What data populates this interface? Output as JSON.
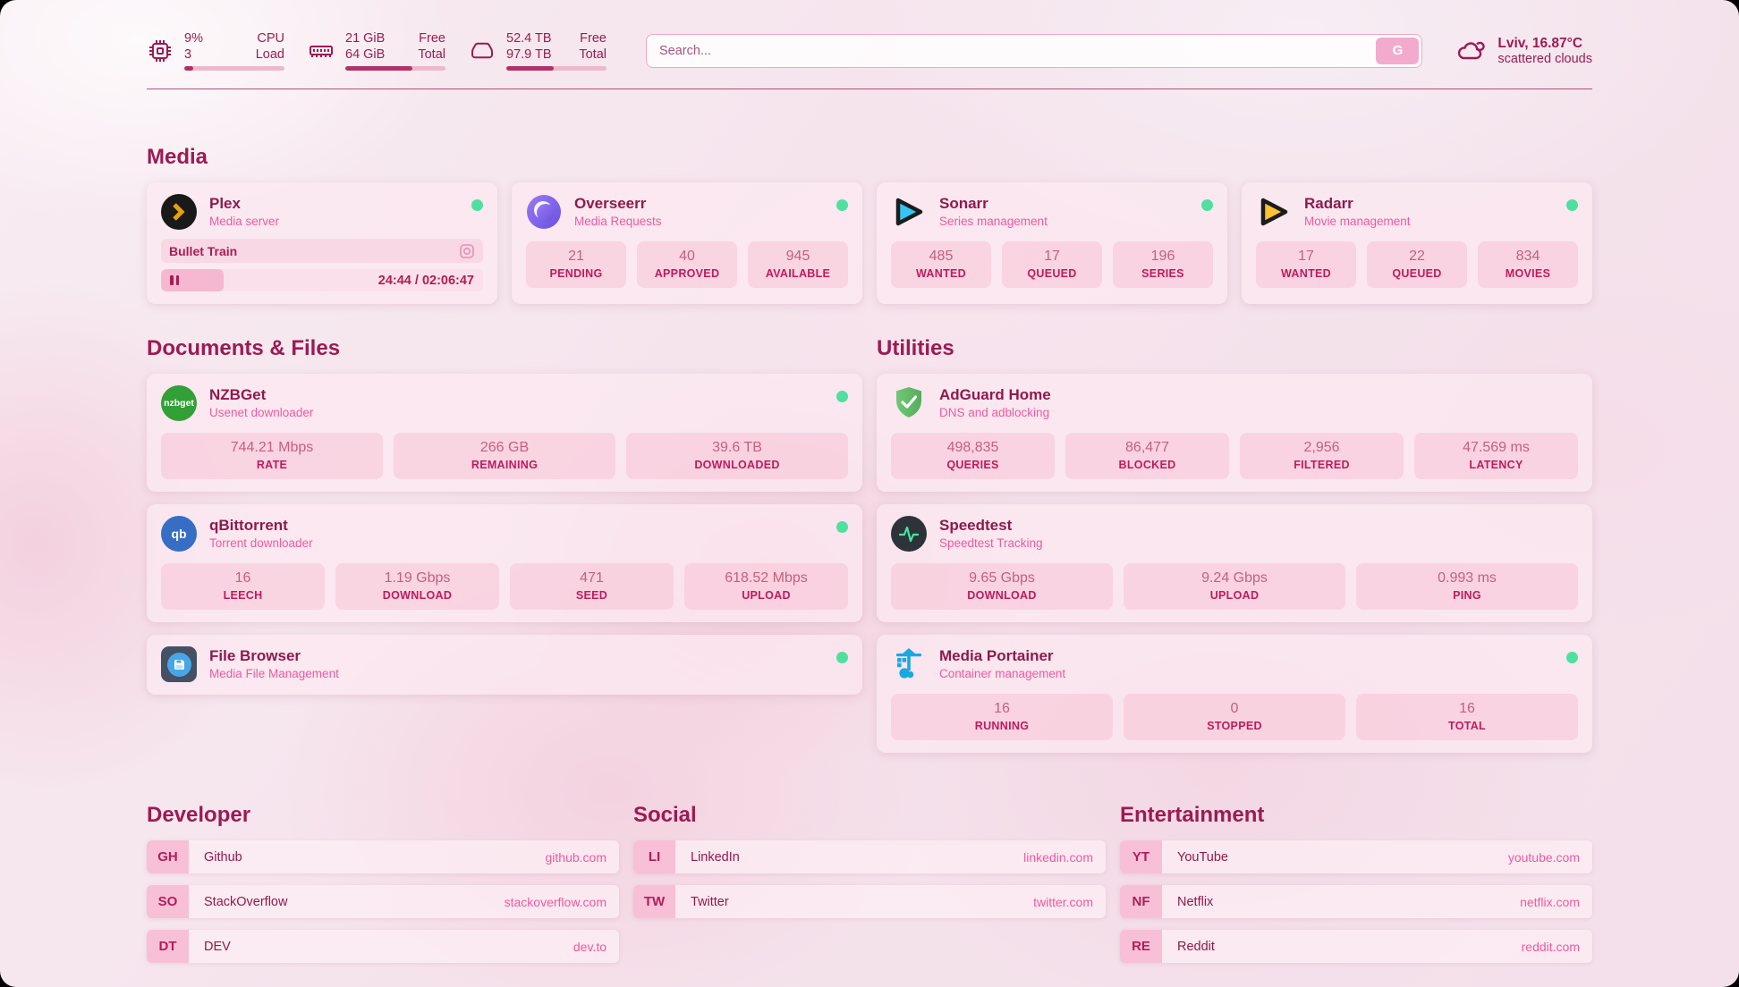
{
  "topbar": {
    "cpu": {
      "value1": "9%",
      "value2": "3",
      "label1": "CPU",
      "label2": "Load",
      "progress": 9
    },
    "memory": {
      "value1": "21 GiB",
      "value2": "64 GiB",
      "label1": "Free",
      "label2": "Total",
      "progress": 67
    },
    "disk": {
      "value1": "52.4 TB",
      "value2": "97.9 TB",
      "label1": "Free",
      "label2": "Total",
      "progress": 47
    },
    "search": {
      "placeholder": "Search...",
      "button_label": "G"
    },
    "weather": {
      "line1": "Lviv, 16.87°C",
      "line2": "scattered clouds"
    }
  },
  "media": {
    "heading": "Media",
    "plex": {
      "title": "Plex",
      "subtitle": "Media server",
      "now_playing": "Bullet Train",
      "time": "24:44 / 02:06:47",
      "progress": 19.5
    },
    "overseerr": {
      "title": "Overseerr",
      "subtitle": "Media Requests",
      "stats": [
        {
          "value": "21",
          "label": "PENDING"
        },
        {
          "value": "40",
          "label": "APPROVED"
        },
        {
          "value": "945",
          "label": "AVAILABLE"
        }
      ]
    },
    "sonarr": {
      "title": "Sonarr",
      "subtitle": "Series management",
      "stats": [
        {
          "value": "485",
          "label": "WANTED"
        },
        {
          "value": "17",
          "label": "QUEUED"
        },
        {
          "value": "196",
          "label": "SERIES"
        }
      ]
    },
    "radarr": {
      "title": "Radarr",
      "subtitle": "Movie management",
      "stats": [
        {
          "value": "17",
          "label": "WANTED"
        },
        {
          "value": "22",
          "label": "QUEUED"
        },
        {
          "value": "834",
          "label": "MOVIES"
        }
      ]
    }
  },
  "documents": {
    "heading": "Documents & Files",
    "nzbget": {
      "title": "NZBGet",
      "subtitle": "Usenet downloader",
      "stats": [
        {
          "value": "744.21 Mbps",
          "label": "RATE"
        },
        {
          "value": "266 GB",
          "label": "REMAINING"
        },
        {
          "value": "39.6 TB",
          "label": "DOWNLOADED"
        }
      ]
    },
    "qbittorrent": {
      "title": "qBittorrent",
      "subtitle": "Torrent downloader",
      "stats": [
        {
          "value": "16",
          "label": "LEECH"
        },
        {
          "value": "1.19 Gbps",
          "label": "DOWNLOAD"
        },
        {
          "value": "471",
          "label": "SEED"
        },
        {
          "value": "618.52 Mbps",
          "label": "UPLOAD"
        }
      ]
    },
    "filebrowser": {
      "title": "File Browser",
      "subtitle": "Media File Management"
    }
  },
  "utilities": {
    "heading": "Utilities",
    "adguard": {
      "title": "AdGuard Home",
      "subtitle": "DNS and adblocking",
      "stats": [
        {
          "value": "498,835",
          "label": "QUERIES"
        },
        {
          "value": "86,477",
          "label": "BLOCKED"
        },
        {
          "value": "2,956",
          "label": "FILTERED"
        },
        {
          "value": "47.569 ms",
          "label": "LATENCY"
        }
      ]
    },
    "speedtest": {
      "title": "Speedtest",
      "subtitle": "Speedtest Tracking",
      "stats": [
        {
          "value": "9.65 Gbps",
          "label": "DOWNLOAD"
        },
        {
          "value": "9.24 Gbps",
          "label": "UPLOAD"
        },
        {
          "value": "0.993 ms",
          "label": "PING"
        }
      ]
    },
    "portainer": {
      "title": "Media Portainer",
      "subtitle": "Container management",
      "stats": [
        {
          "value": "16",
          "label": "RUNNING"
        },
        {
          "value": "0",
          "label": "STOPPED"
        },
        {
          "value": "16",
          "label": "TOTAL"
        }
      ]
    }
  },
  "links": {
    "developer": {
      "heading": "Developer",
      "items": [
        {
          "abbr": "GH",
          "name": "Github",
          "url": "github.com"
        },
        {
          "abbr": "SO",
          "name": "StackOverflow",
          "url": "stackoverflow.com"
        },
        {
          "abbr": "DT",
          "name": "DEV",
          "url": "dev.to"
        }
      ]
    },
    "social": {
      "heading": "Social",
      "items": [
        {
          "abbr": "LI",
          "name": "LinkedIn",
          "url": "linkedin.com"
        },
        {
          "abbr": "TW",
          "name": "Twitter",
          "url": "twitter.com"
        }
      ]
    },
    "entertainment": {
      "heading": "Entertainment",
      "items": [
        {
          "abbr": "YT",
          "name": "YouTube",
          "url": "youtube.com"
        },
        {
          "abbr": "NF",
          "name": "Netflix",
          "url": "netflix.com"
        },
        {
          "abbr": "RE",
          "name": "Reddit",
          "url": "reddit.com"
        }
      ]
    }
  },
  "nzbget_icon_text": "nzbget",
  "qbittorrent_icon_text": "qb",
  "colors": {
    "accent": "#9b1b53",
    "subtitle_pink": "#ee5aa0",
    "status_online": "#4fe0a0"
  }
}
